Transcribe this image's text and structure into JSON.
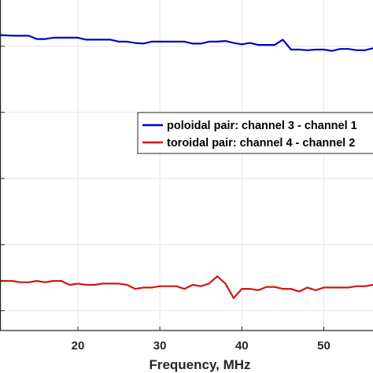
{
  "chart_data": {
    "type": "line",
    "title": "",
    "xlabel": "Frequency, MHz",
    "ylabel": "",
    "xlim": [
      10.5,
      56
    ],
    "ylim": [
      0,
      5
    ],
    "xticks": [
      20,
      30,
      40,
      50
    ],
    "xtick_labels": [
      "20",
      "30",
      "40",
      "50"
    ],
    "yticks": [
      0.3,
      1.3,
      2.3,
      3.3,
      4.3
    ],
    "grid": true,
    "legend_position": "upper-right",
    "series": [
      {
        "name": "poloidal pair: channel 3 - channel 1",
        "color": "#0000c8",
        "x": [
          10.5,
          12,
          13,
          14,
          15,
          16,
          17,
          18,
          19,
          20,
          21,
          22,
          23,
          24,
          25,
          26,
          27,
          28,
          29,
          30,
          31,
          32,
          33,
          34,
          35,
          36,
          37,
          38,
          39,
          40,
          41,
          42,
          43,
          44,
          45,
          46,
          47,
          48,
          49,
          50,
          51,
          52,
          53,
          54,
          55,
          56
        ],
        "y": [
          4.47,
          4.46,
          4.46,
          4.46,
          4.41,
          4.41,
          4.43,
          4.43,
          4.43,
          4.43,
          4.4,
          4.4,
          4.4,
          4.4,
          4.37,
          4.37,
          4.35,
          4.34,
          4.37,
          4.37,
          4.37,
          4.37,
          4.37,
          4.34,
          4.34,
          4.37,
          4.37,
          4.38,
          4.35,
          4.33,
          4.35,
          4.32,
          4.32,
          4.32,
          4.4,
          4.25,
          4.25,
          4.24,
          4.25,
          4.25,
          4.23,
          4.26,
          4.26,
          4.24,
          4.24,
          4.27
        ]
      },
      {
        "name": "toroidal pair: channel 4 - channel 2",
        "color": "#d21414",
        "x": [
          10.5,
          12,
          13,
          14,
          15,
          16,
          17,
          18,
          19,
          20,
          21,
          22,
          23,
          24,
          25,
          26,
          27,
          28,
          29,
          30,
          31,
          32,
          33,
          34,
          35,
          36,
          37,
          38,
          39,
          40,
          41,
          42,
          43,
          44,
          45,
          46,
          47,
          48,
          49,
          50,
          51,
          52,
          53,
          54,
          55,
          56
        ],
        "y": [
          0.75,
          0.75,
          0.73,
          0.73,
          0.75,
          0.73,
          0.75,
          0.75,
          0.69,
          0.71,
          0.69,
          0.69,
          0.71,
          0.71,
          0.71,
          0.69,
          0.63,
          0.65,
          0.65,
          0.67,
          0.67,
          0.67,
          0.63,
          0.69,
          0.67,
          0.71,
          0.82,
          0.71,
          0.49,
          0.63,
          0.63,
          0.61,
          0.66,
          0.66,
          0.63,
          0.63,
          0.59,
          0.65,
          0.61,
          0.65,
          0.65,
          0.65,
          0.65,
          0.67,
          0.67,
          0.69
        ]
      }
    ]
  }
}
